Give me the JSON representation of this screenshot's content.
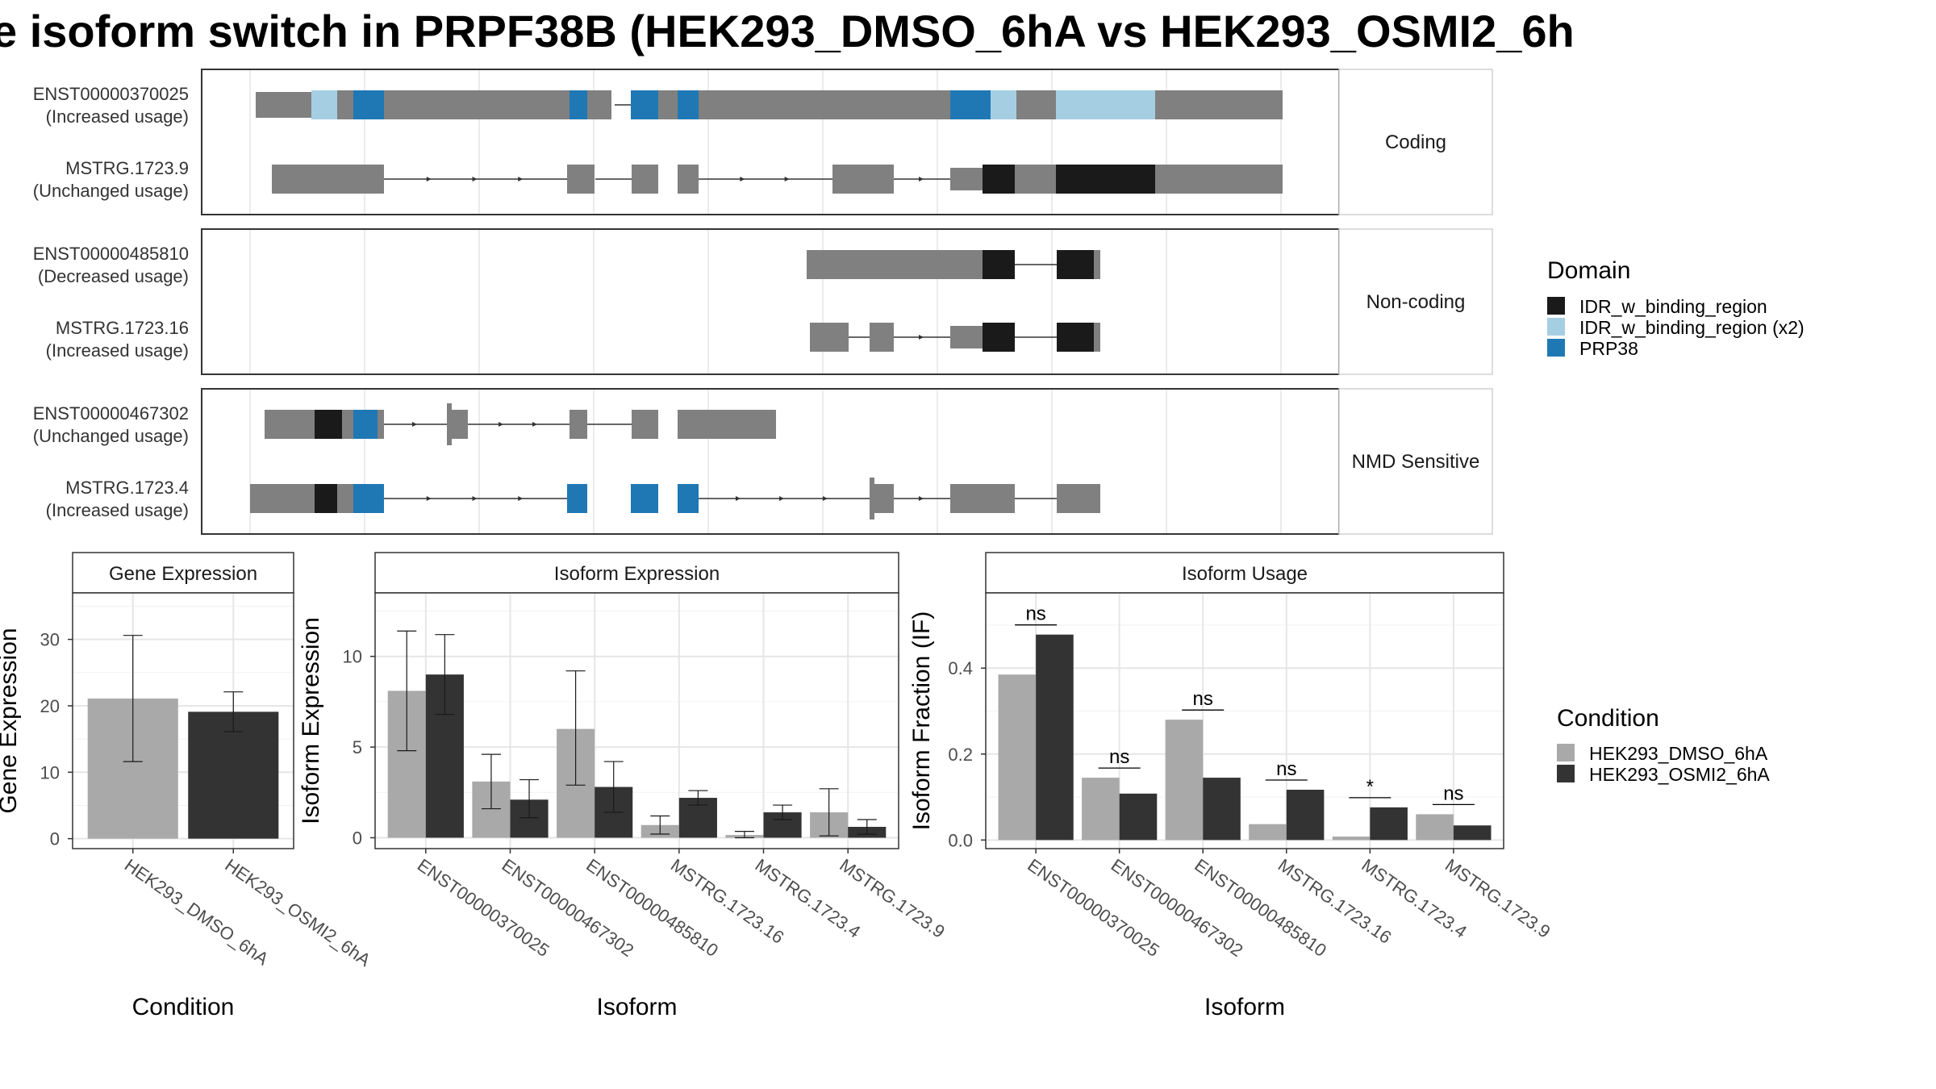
{
  "title": "e isoform switch in PRPF38B (HEK293_DMSO_6hA vs HEK293_OSMI2_6h",
  "colors": {
    "exon": "#808080",
    "IDR_w_binding_region": "#1a1a1a",
    "IDR_w_binding_region (x2)": "#a6cee3",
    "PRP38": "#1f78b4",
    "HEK293_DMSO_6hA": "#a9a9a9",
    "HEK293_OSMI2_6hA": "#333333"
  },
  "structure": {
    "domain_legend_title": "Domain",
    "domains": [
      "IDR_w_binding_region",
      "IDR_w_binding_region (x2)",
      "PRP38"
    ],
    "panels": [
      {
        "strip": "Coding",
        "isoforms": [
          {
            "id": "ENST00000370025",
            "usage": "(Increased usage)"
          },
          {
            "id": "MSTRG.1723.9",
            "usage": "(Unchanged usage)"
          }
        ]
      },
      {
        "strip": "Non-coding",
        "isoforms": [
          {
            "id": "ENST00000485810",
            "usage": "(Decreased usage)"
          },
          {
            "id": "MSTRG.1723.16",
            "usage": "(Increased usage)"
          }
        ]
      },
      {
        "strip": "NMD Sensitive",
        "isoforms": [
          {
            "id": "ENST00000467302",
            "usage": "(Unchanged usage)"
          },
          {
            "id": "MSTRG.1723.4",
            "usage": "(Increased usage)"
          }
        ]
      }
    ]
  },
  "chart_data": [
    {
      "type": "bar",
      "title": "Gene Expression",
      "xlabel": "Condition",
      "ylabel": "Gene Expression",
      "ylim": [
        -1.5,
        37
      ],
      "yticks": [
        0,
        10,
        20,
        30
      ],
      "categories": [
        "HEK293_DMSO_6hA",
        "HEK293_OSMI2_6hA"
      ],
      "values": [
        21.1,
        19.1
      ],
      "errors": [
        [
          11.6,
          30.6
        ],
        [
          16.1,
          22.1
        ]
      ]
    },
    {
      "type": "bar",
      "title": "Isoform Expression",
      "xlabel": "Isoform",
      "ylabel": "Isoform Expression",
      "ylim": [
        -0.6,
        13.5
      ],
      "yticks": [
        0,
        5,
        10
      ],
      "categories": [
        "ENST00000370025",
        "ENST00000467302",
        "ENST00000485810",
        "MSTRG.1723.16",
        "MSTRG.1723.4",
        "MSTRG.1723.9"
      ],
      "series": [
        {
          "name": "HEK293_DMSO_6hA",
          "values": [
            8.1,
            3.1,
            6.0,
            0.7,
            0.15,
            1.4
          ],
          "errors": [
            [
              4.8,
              11.4
            ],
            [
              1.6,
              4.6
            ],
            [
              2.9,
              9.2
            ],
            [
              0.2,
              1.2
            ],
            [
              0.0,
              0.35
            ],
            [
              0.1,
              2.7
            ]
          ]
        },
        {
          "name": "HEK293_OSMI2_6hA",
          "values": [
            9.0,
            2.1,
            2.8,
            2.2,
            1.4,
            0.6
          ],
          "errors": [
            [
              6.8,
              11.2
            ],
            [
              1.1,
              3.2
            ],
            [
              1.4,
              4.2
            ],
            [
              1.8,
              2.6
            ],
            [
              1.0,
              1.8
            ],
            [
              0.2,
              1.0
            ]
          ]
        }
      ]
    },
    {
      "type": "bar",
      "title": "Isoform Usage",
      "xlabel": "Isoform",
      "ylabel": "Isoform Fraction (IF)",
      "ylim": [
        -0.02,
        0.575
      ],
      "yticks": [
        0.0,
        0.2,
        0.4
      ],
      "ytick_labels": [
        "0.0",
        "0.2",
        "0.4"
      ],
      "categories": [
        "ENST00000370025",
        "ENST00000467302",
        "ENST00000485810",
        "MSTRG.1723.16",
        "MSTRG.1723.4",
        "MSTRG.1723.9"
      ],
      "series": [
        {
          "name": "HEK293_DMSO_6hA",
          "values": [
            0.385,
            0.145,
            0.28,
            0.037,
            0.008,
            0.06
          ]
        },
        {
          "name": "HEK293_OSMI2_6hA",
          "values": [
            0.478,
            0.108,
            0.145,
            0.117,
            0.076,
            0.034
          ]
        }
      ],
      "significance": [
        "ns",
        "ns",
        "ns",
        "ns",
        "*",
        "ns"
      ]
    }
  ],
  "condition_legend": {
    "title": "Condition",
    "items": [
      "HEK293_DMSO_6hA",
      "HEK293_OSMI2_6hA"
    ]
  }
}
